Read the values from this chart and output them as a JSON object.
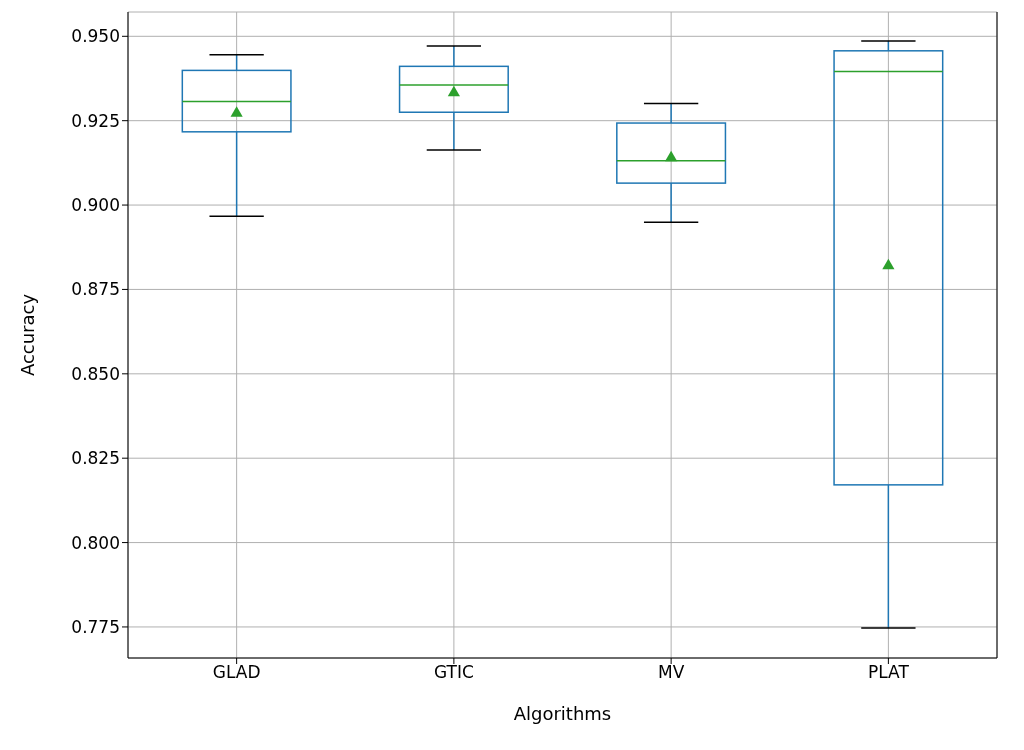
{
  "chart_data": {
    "type": "box",
    "xlabel": "Algorithms",
    "ylabel": "Accuracy",
    "categories": [
      "GLAD",
      "GTIC",
      "MV",
      "PLAT"
    ],
    "color": "#1f77b4",
    "marker": "triangle",
    "grid": true,
    "boxes": [
      {
        "low": 0.8967,
        "q1": 0.9217,
        "median": 0.9307,
        "q3": 0.9399,
        "high": 0.9445,
        "mean": 0.9272
      },
      {
        "low": 0.9163,
        "q1": 0.9275,
        "median": 0.9356,
        "q3": 0.9411,
        "high": 0.9471,
        "mean": 0.9333
      },
      {
        "low": 0.8949,
        "q1": 0.9065,
        "median": 0.9131,
        "q3": 0.9243,
        "high": 0.9301,
        "mean": 0.914
      },
      {
        "low": 0.7747,
        "q1": 0.8171,
        "median": 0.9396,
        "q3": 0.9457,
        "high": 0.9486,
        "mean": 0.882
      }
    ],
    "ylim": [
      0.7658,
      0.9572
    ],
    "yticks": [
      {
        "value": 0.775,
        "label": "0.775"
      },
      {
        "value": 0.8,
        "label": "0.800"
      },
      {
        "value": 0.825,
        "label": "0.825"
      },
      {
        "value": 0.85,
        "label": "0.850"
      },
      {
        "value": 0.875,
        "label": "0.875"
      },
      {
        "value": 0.9,
        "label": "0.900"
      },
      {
        "value": 0.925,
        "label": "0.925"
      },
      {
        "value": 0.95,
        "label": "0.950"
      }
    ]
  }
}
